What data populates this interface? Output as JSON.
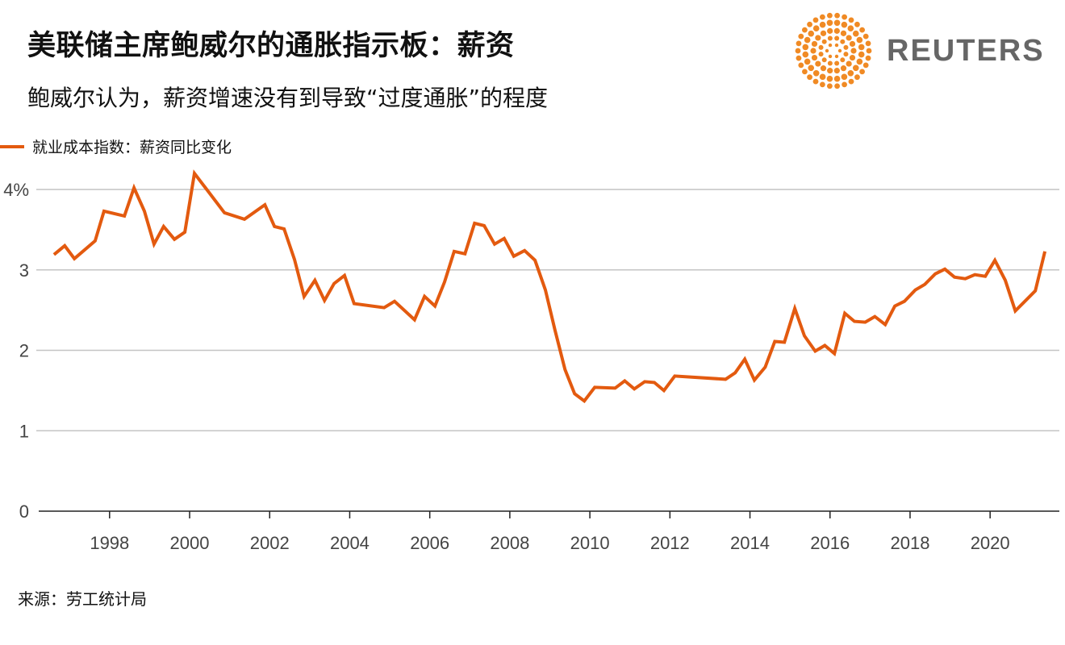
{
  "header": {
    "title": "美联储主席鲍威尔的通胀指示板：薪资",
    "subtitle": "鲍威尔认为，薪资增速没有到导致“过度通胀”的程度",
    "logo_text": "REUTERS"
  },
  "footer": {
    "source": "来源：劳工统计局"
  },
  "colors": {
    "line": "#e35a0f",
    "grid": "#c4c4c4",
    "axis": "#222222",
    "logo_orange": "#f08a24"
  },
  "chart_data": {
    "type": "line",
    "title": "美联储主席鲍威尔的通胀指示板：薪资",
    "xlabel": "",
    "ylabel": "",
    "ylim": [
      0,
      4.4
    ],
    "xlim": [
      1996.23,
      2021.73
    ],
    "grid": true,
    "legend_placement": "top-left",
    "y_ticks": [
      0,
      1,
      2,
      3,
      4
    ],
    "y_tick_labels": [
      "0",
      "1",
      "2",
      "3",
      "4%"
    ],
    "x_ticks": [
      1998,
      2000,
      2002,
      2004,
      2006,
      2008,
      2010,
      2012,
      2014,
      2016,
      2018,
      2020
    ],
    "x_tick_labels": [
      "1998",
      "2000",
      "2002",
      "2004",
      "2006",
      "2008",
      "2010",
      "2012",
      "2014",
      "2016",
      "2018",
      "2020"
    ],
    "series": [
      {
        "name": "就业成本指数：薪资同比变化",
        "x": [
          1996.61,
          1996.88,
          1997.12,
          1997.64,
          1997.86,
          1998.37,
          1998.61,
          1998.87,
          1999.11,
          1999.35,
          1999.62,
          1999.88,
          2000.12,
          2000.87,
          2001.37,
          2001.88,
          2002.12,
          2002.36,
          2002.62,
          2002.86,
          2003.13,
          2003.37,
          2003.61,
          2003.87,
          2004.11,
          2004.86,
          2005.12,
          2005.62,
          2005.87,
          2006.13,
          2006.37,
          2006.61,
          2006.88,
          2007.12,
          2007.36,
          2007.62,
          2007.86,
          2008.1,
          2008.37,
          2008.63,
          2008.89,
          2009.13,
          2009.38,
          2009.62,
          2009.86,
          2010.12,
          2010.63,
          2010.87,
          2011.11,
          2011.37,
          2011.61,
          2011.85,
          2012.12,
          2013.39,
          2013.63,
          2013.87,
          2014.11,
          2014.38,
          2014.62,
          2014.86,
          2015.12,
          2015.36,
          2015.63,
          2015.87,
          2016.11,
          2016.37,
          2016.61,
          2016.88,
          2017.12,
          2017.38,
          2017.62,
          2017.86,
          2018.13,
          2018.37,
          2018.63,
          2018.87,
          2019.11,
          2019.38,
          2019.62,
          2019.88,
          2020.12,
          2020.38,
          2020.63,
          2020.87,
          2021.13,
          2021.37
        ],
        "values": [
          3.19,
          3.3,
          3.14,
          3.36,
          3.73,
          3.67,
          4.02,
          3.73,
          3.32,
          3.54,
          3.38,
          3.47,
          4.2,
          3.71,
          3.63,
          3.81,
          3.54,
          3.51,
          3.13,
          2.67,
          2.87,
          2.62,
          2.83,
          2.93,
          2.58,
          2.53,
          2.61,
          2.38,
          2.67,
          2.55,
          2.85,
          3.23,
          3.2,
          3.58,
          3.55,
          3.32,
          3.39,
          3.17,
          3.24,
          3.12,
          2.75,
          2.25,
          1.76,
          1.46,
          1.37,
          1.54,
          1.53,
          1.62,
          1.52,
          1.61,
          1.6,
          1.5,
          1.68,
          1.64,
          1.72,
          1.89,
          1.63,
          1.79,
          2.11,
          2.1,
          2.52,
          2.18,
          1.99,
          2.06,
          1.96,
          2.46,
          2.36,
          2.35,
          2.42,
          2.32,
          2.55,
          2.61,
          2.75,
          2.82,
          2.95,
          3.01,
          2.91,
          2.89,
          2.94,
          2.92,
          3.12,
          2.87,
          2.49,
          2.61,
          2.74,
          3.23
        ]
      }
    ]
  }
}
